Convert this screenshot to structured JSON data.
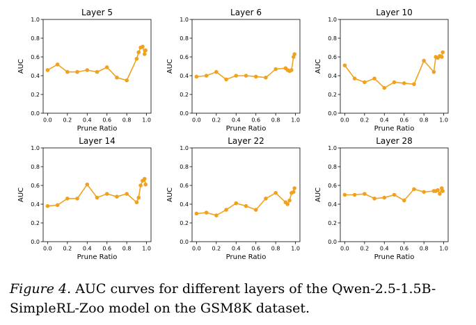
{
  "caption": {
    "label": "Figure 4.",
    "text": "AUC curves for different layers of the Qwen-2.5-1.5B-SimpleRL-Zoo model on the GSM8K dataset."
  },
  "chart_data": [
    {
      "type": "line",
      "title": "Layer 5",
      "xlabel": "Prune Ratio",
      "ylabel": "AUC",
      "xlim": [
        0.0,
        1.0
      ],
      "ylim": [
        0.0,
        1.0
      ],
      "xticks": [
        "0.0",
        "0.2",
        "0.4",
        "0.6",
        "0.8",
        "1.0"
      ],
      "yticks": [
        "0.0",
        "0.2",
        "0.4",
        "0.6",
        "0.8",
        "1.0"
      ],
      "color": "#f0a21f",
      "x": [
        0.0,
        0.1,
        0.2,
        0.3,
        0.4,
        0.5,
        0.6,
        0.7,
        0.8,
        0.9,
        0.92,
        0.94,
        0.96,
        0.98,
        0.99
      ],
      "y": [
        0.46,
        0.52,
        0.44,
        0.44,
        0.46,
        0.44,
        0.49,
        0.38,
        0.35,
        0.58,
        0.65,
        0.7,
        0.71,
        0.63,
        0.67
      ]
    },
    {
      "type": "line",
      "title": "Layer 6",
      "xlabel": "Prune Ratio",
      "ylabel": "AUC",
      "xlim": [
        0.0,
        1.0
      ],
      "ylim": [
        0.0,
        1.0
      ],
      "xticks": [
        "0.0",
        "0.2",
        "0.4",
        "0.6",
        "0.8",
        "1.0"
      ],
      "yticks": [
        "0.0",
        "0.2",
        "0.4",
        "0.6",
        "0.8",
        "1.0"
      ],
      "color": "#f0a21f",
      "x": [
        0.0,
        0.1,
        0.2,
        0.3,
        0.4,
        0.5,
        0.6,
        0.7,
        0.8,
        0.9,
        0.92,
        0.94,
        0.96,
        0.98,
        0.99
      ],
      "y": [
        0.39,
        0.4,
        0.44,
        0.36,
        0.4,
        0.4,
        0.39,
        0.38,
        0.47,
        0.48,
        0.46,
        0.45,
        0.46,
        0.6,
        0.63
      ]
    },
    {
      "type": "line",
      "title": "Layer 10",
      "xlabel": "Prune Ratio",
      "ylabel": "AUC",
      "xlim": [
        0.0,
        1.0
      ],
      "ylim": [
        0.0,
        1.0
      ],
      "xticks": [
        "0.0",
        "0.2",
        "0.4",
        "0.6",
        "0.8",
        "1.0"
      ],
      "yticks": [
        "0.0",
        "0.2",
        "0.4",
        "0.6",
        "0.8",
        "1.0"
      ],
      "color": "#f0a21f",
      "x": [
        0.0,
        0.1,
        0.2,
        0.3,
        0.4,
        0.5,
        0.6,
        0.7,
        0.8,
        0.9,
        0.92,
        0.94,
        0.96,
        0.98,
        0.99
      ],
      "y": [
        0.51,
        0.37,
        0.33,
        0.37,
        0.27,
        0.33,
        0.32,
        0.31,
        0.56,
        0.44,
        0.6,
        0.59,
        0.61,
        0.6,
        0.65
      ]
    },
    {
      "type": "line",
      "title": "Layer 14",
      "xlabel": "Prune Ratio",
      "ylabel": "AUC",
      "xlim": [
        0.0,
        1.0
      ],
      "ylim": [
        0.0,
        1.0
      ],
      "xticks": [
        "0.0",
        "0.2",
        "0.4",
        "0.6",
        "0.8",
        "1.0"
      ],
      "yticks": [
        "0.0",
        "0.2",
        "0.4",
        "0.6",
        "0.8",
        "1.0"
      ],
      "color": "#f0a21f",
      "x": [
        0.0,
        0.1,
        0.2,
        0.3,
        0.4,
        0.5,
        0.6,
        0.7,
        0.8,
        0.9,
        0.92,
        0.94,
        0.96,
        0.98,
        0.99
      ],
      "y": [
        0.38,
        0.39,
        0.46,
        0.46,
        0.61,
        0.47,
        0.51,
        0.48,
        0.51,
        0.42,
        0.47,
        0.6,
        0.65,
        0.67,
        0.61
      ]
    },
    {
      "type": "line",
      "title": "Layer 22",
      "xlabel": "Prune Ratio",
      "ylabel": "AUC",
      "xlim": [
        0.0,
        1.0
      ],
      "ylim": [
        0.0,
        1.0
      ],
      "xticks": [
        "0.0",
        "0.2",
        "0.4",
        "0.6",
        "0.8",
        "1.0"
      ],
      "yticks": [
        "0.0",
        "0.2",
        "0.4",
        "0.6",
        "0.8",
        "1.0"
      ],
      "color": "#f0a21f",
      "x": [
        0.0,
        0.1,
        0.2,
        0.3,
        0.4,
        0.5,
        0.6,
        0.7,
        0.8,
        0.9,
        0.92,
        0.94,
        0.96,
        0.98,
        0.99
      ],
      "y": [
        0.3,
        0.31,
        0.28,
        0.34,
        0.41,
        0.38,
        0.34,
        0.46,
        0.52,
        0.42,
        0.4,
        0.44,
        0.52,
        0.53,
        0.57
      ]
    },
    {
      "type": "line",
      "title": "Layer 28",
      "xlabel": "Prune Ratio",
      "ylabel": "AUC",
      "xlim": [
        0.0,
        1.0
      ],
      "ylim": [
        0.0,
        1.0
      ],
      "xticks": [
        "0.0",
        "0.2",
        "0.4",
        "0.6",
        "0.8",
        "1.0"
      ],
      "yticks": [
        "0.0",
        "0.2",
        "0.4",
        "0.6",
        "0.8",
        "1.0"
      ],
      "color": "#f0a21f",
      "x": [
        0.0,
        0.1,
        0.2,
        0.3,
        0.4,
        0.5,
        0.6,
        0.7,
        0.8,
        0.9,
        0.92,
        0.94,
        0.96,
        0.98,
        0.99
      ],
      "y": [
        0.5,
        0.5,
        0.51,
        0.46,
        0.47,
        0.5,
        0.44,
        0.56,
        0.53,
        0.54,
        0.54,
        0.55,
        0.51,
        0.57,
        0.54
      ]
    }
  ]
}
